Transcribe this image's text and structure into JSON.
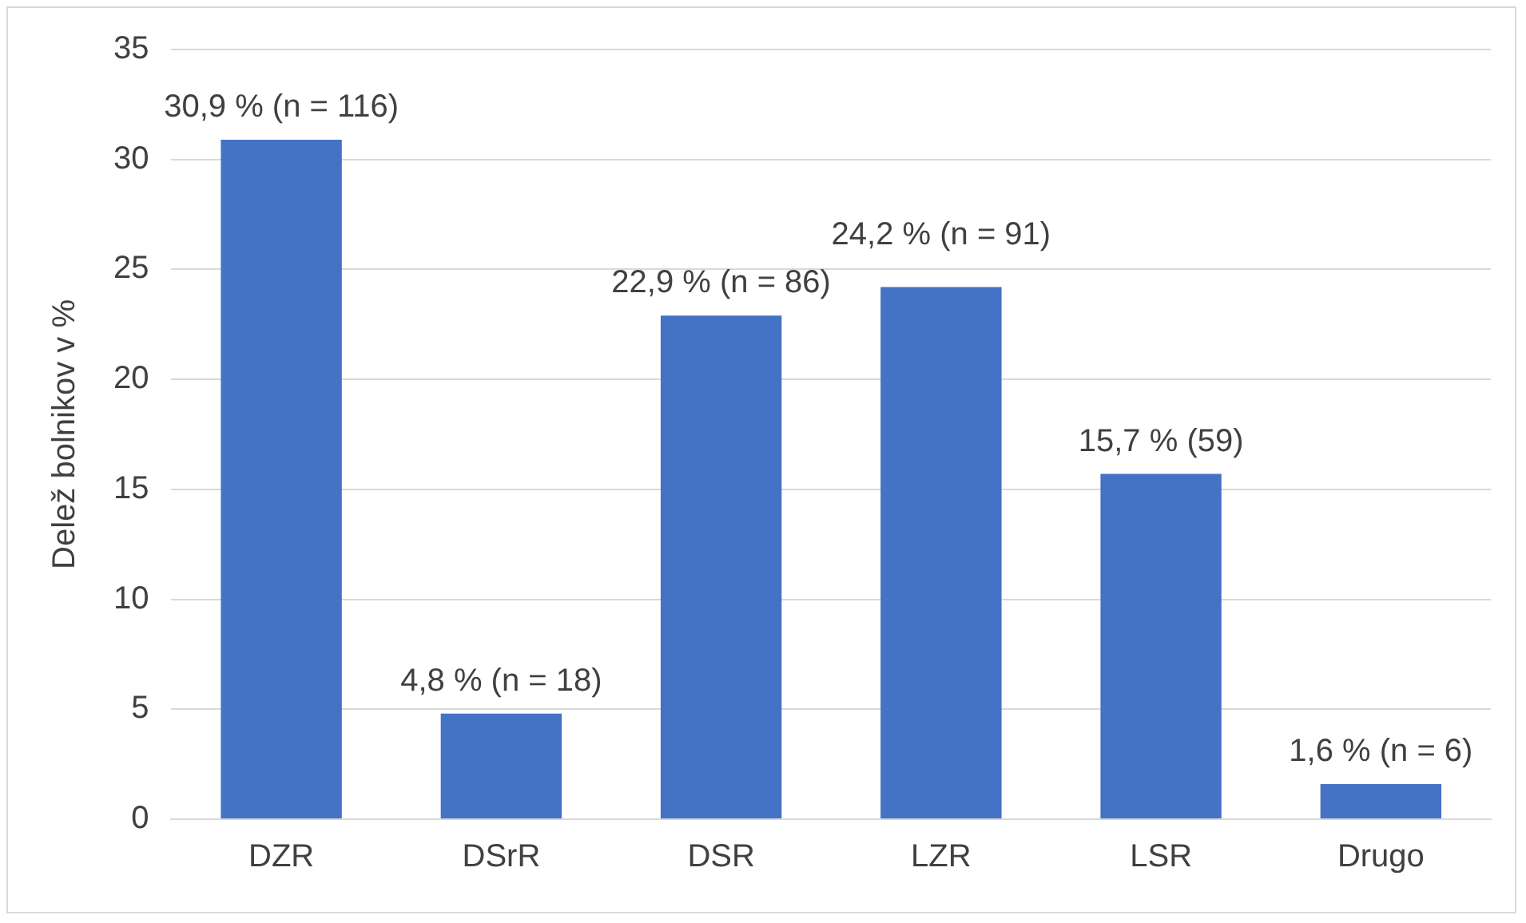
{
  "chart_data": {
    "type": "bar",
    "ylabel": "Delež bolnikov v %",
    "categories": [
      "DZR",
      "DSrR",
      "DSR",
      "LZR",
      "LSR",
      "Drugo"
    ],
    "values": [
      30.9,
      4.8,
      22.9,
      24.2,
      15.7,
      1.6
    ],
    "value_labels": [
      "30,9 % (n = 116)",
      "4,8 % (n = 18)",
      "22,9 % (n = 86)",
      "24,2 % (n = 91)",
      "15,7 % (59)",
      "1,6 % (n = 6)"
    ],
    "color": "#4472c4",
    "ylim": [
      0,
      35
    ],
    "yticks": [
      0,
      5,
      10,
      15,
      20,
      25,
      30,
      35
    ],
    "grid": "y",
    "legend": false
  }
}
